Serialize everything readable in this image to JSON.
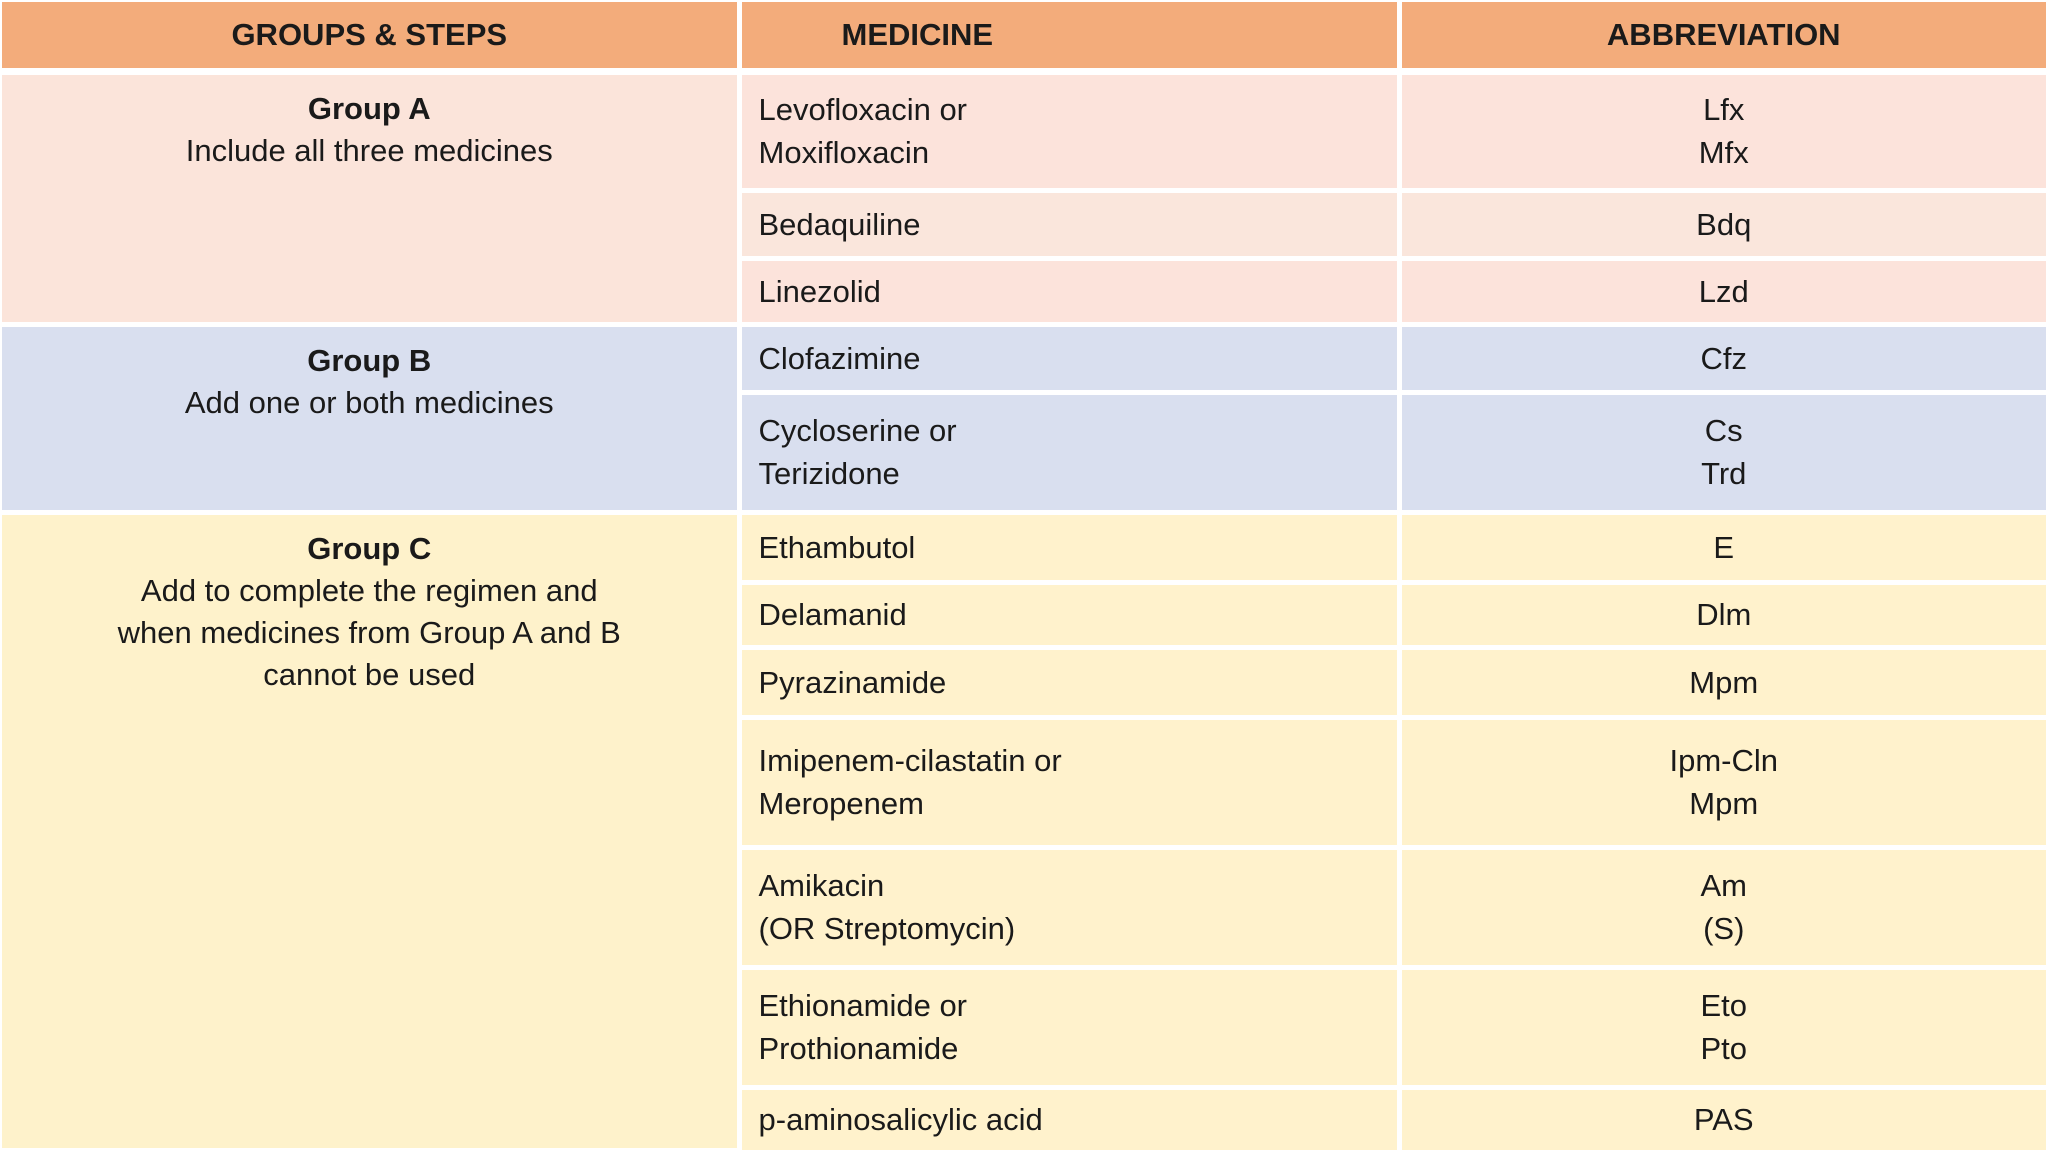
{
  "colors": {
    "header_bg": "#f3ac7b",
    "group_a_bg": "#fbe4da",
    "group_a_row_alt_bg": "#fae6dc",
    "group_b_bg": "#d9dfef",
    "group_c_bg": "#fff2cc",
    "divider": "#ffffff",
    "text": "#1a1a1a"
  },
  "table": {
    "headers": [
      "GROUPS & STEPS",
      "MEDICINE",
      "ABBREVIATION"
    ],
    "groups": [
      {
        "title": "Group A",
        "desc_lines": [
          "Include all three medicines"
        ],
        "rows": [
          {
            "medicine_lines": [
              "Levofloxacin or",
              "Moxifloxacin"
            ],
            "abbr_lines": [
              "Lfx",
              "Mfx"
            ]
          },
          {
            "medicine_lines": [
              "Bedaquiline"
            ],
            "abbr_lines": [
              "Bdq"
            ]
          },
          {
            "medicine_lines": [
              "Linezolid"
            ],
            "abbr_lines": [
              "Lzd"
            ]
          }
        ]
      },
      {
        "title": "Group B",
        "desc_lines": [
          "Add one or both medicines"
        ],
        "rows": [
          {
            "medicine_lines": [
              "Clofazimine"
            ],
            "abbr_lines": [
              "Cfz"
            ]
          },
          {
            "medicine_lines": [
              "Cycloserine or",
              "Terizidone"
            ],
            "abbr_lines": [
              "Cs",
              "Trd"
            ]
          }
        ]
      },
      {
        "title": "Group C",
        "desc_lines": [
          "Add to complete the regimen and",
          "when medicines from Group A and B",
          "cannot be used"
        ],
        "rows": [
          {
            "medicine_lines": [
              "Ethambutol"
            ],
            "abbr_lines": [
              "E"
            ]
          },
          {
            "medicine_lines": [
              "Delamanid"
            ],
            "abbr_lines": [
              "Dlm"
            ]
          },
          {
            "medicine_lines": [
              "Pyrazinamide"
            ],
            "abbr_lines": [
              "Mpm"
            ]
          },
          {
            "medicine_lines": [
              "Imipenem-cilastatin or",
              "Meropenem"
            ],
            "abbr_lines": [
              "Ipm-Cln",
              "Mpm"
            ]
          },
          {
            "medicine_lines": [
              "Amikacin",
              "(OR Streptomycin)"
            ],
            "abbr_lines": [
              "Am",
              "(S)"
            ]
          },
          {
            "medicine_lines": [
              "Ethionamide or",
              "Prothionamide"
            ],
            "abbr_lines": [
              "Eto",
              "Pto"
            ]
          },
          {
            "medicine_lines": [
              "p-aminosalicylic acid"
            ],
            "abbr_lines": [
              "PAS"
            ]
          }
        ]
      }
    ]
  }
}
